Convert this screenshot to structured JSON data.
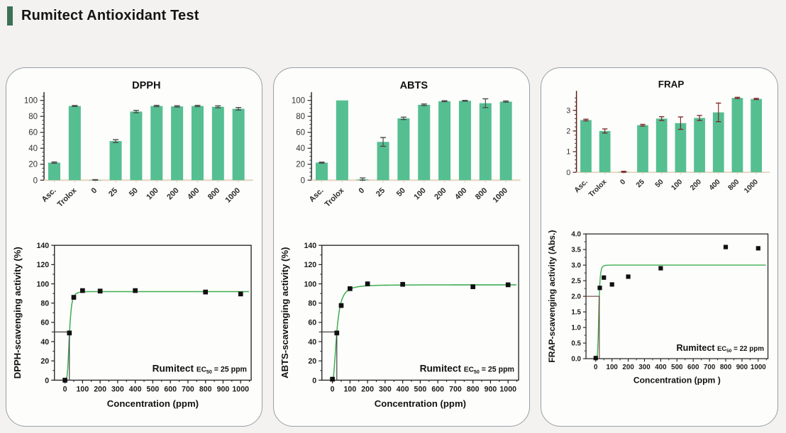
{
  "page": {
    "title": "Rumitect Antioxidant Test",
    "background_color": "#f3f2f0",
    "accent_color": "#3d7157",
    "panel_background": "#fdfdfc",
    "panel_border_color": "#989ea6"
  },
  "colors": {
    "bar_fill": "#55bf92",
    "curve_line": "#3fae51",
    "point_fill": "#101010",
    "axis_dark": "#3a3a3a",
    "axis_maroon": "#5c2018",
    "baseline_tan": "#e6d5bb",
    "error_dark": "#4a4a4a",
    "error_maroon": "#7a1f1f"
  },
  "chart_data": [
    {
      "panel": "DPPH",
      "type": "bar",
      "title": "DPPH",
      "categories": [
        "Asc.",
        "Trolox",
        "0",
        "25",
        "50",
        "100",
        "200",
        "400",
        "800",
        "1000"
      ],
      "values": [
        22,
        93,
        0.3,
        49,
        86,
        93,
        92.5,
        93,
        92,
        89.5
      ],
      "errors": [
        0.8,
        0.6,
        0.4,
        1.8,
        1.5,
        0.8,
        0.8,
        0.8,
        1.2,
        1.6
      ],
      "ylim": [
        0,
        105
      ],
      "yticks": [
        0,
        20,
        40,
        60,
        80,
        100
      ],
      "yminor": 5,
      "axis_color": "#3a3a3a",
      "error_color": "#4a4a4a"
    },
    {
      "panel": "DPPH",
      "type": "scatter",
      "x": [
        0,
        25,
        50,
        100,
        200,
        400,
        800,
        1000
      ],
      "y": [
        0,
        49,
        86,
        93,
        92.5,
        93,
        91.5,
        89.5
      ],
      "xlabel": "Concentration (ppm)",
      "ylabel": "DPPH-scavenging activity (%)",
      "xlim": [
        -60,
        1060
      ],
      "ylim": [
        0,
        140
      ],
      "xticks": [
        0,
        100,
        200,
        300,
        400,
        500,
        600,
        700,
        800,
        900,
        1000
      ],
      "yticks": [
        0,
        20,
        40,
        60,
        80,
        100,
        120,
        140
      ],
      "ydecimals": 0,
      "fit": {
        "plateau": 92,
        "ec50": 25,
        "hill": 4
      },
      "crosshair": {
        "x": 25,
        "y": 50
      },
      "crosshair_color": "#333333",
      "annotation": {
        "name": "Rumitect",
        "ec": "EC",
        "sub": "50",
        "rest": " = 25 ppm"
      }
    },
    {
      "panel": "ABTS",
      "type": "bar",
      "title": "ABTS",
      "categories": [
        "Asc.",
        "Trolox",
        "0",
        "25",
        "50",
        "100",
        "200",
        "400",
        "800",
        "1000"
      ],
      "values": [
        22,
        100,
        1,
        48,
        77.5,
        94.5,
        99,
        99.5,
        96.5,
        98.5
      ],
      "errors": [
        0.6,
        0,
        1.8,
        5.5,
        1.5,
        1,
        0.6,
        0.5,
        5.5,
        0.8
      ],
      "ylim": [
        0,
        105
      ],
      "yticks": [
        0,
        20,
        40,
        60,
        80,
        100
      ],
      "yminor": 5,
      "axis_color": "#3a3a3a",
      "error_color": "#4a4a4a"
    },
    {
      "panel": "ABTS",
      "type": "scatter",
      "x": [
        0,
        25,
        50,
        100,
        200,
        400,
        800,
        1000
      ],
      "y": [
        1,
        49,
        77.5,
        95,
        100,
        99.5,
        97,
        99
      ],
      "xlabel": "Concentration (ppm)",
      "ylabel": "ABTS-scavenging activity (%)",
      "xlim": [
        -60,
        1060
      ],
      "ylim": [
        0,
        140
      ],
      "xticks": [
        0,
        100,
        200,
        300,
        400,
        500,
        600,
        700,
        800,
        900,
        1000
      ],
      "yticks": [
        0,
        20,
        40,
        60,
        80,
        100,
        120,
        140
      ],
      "ydecimals": 0,
      "fit": {
        "plateau": 99,
        "ec50": 25,
        "hill": 2.2
      },
      "crosshair": {
        "x": 25,
        "y": 50
      },
      "crosshair_color": "#333333",
      "annotation": {
        "name": "Rumitect",
        "ec": "EC",
        "sub": "50",
        "rest": " = 25 ppm"
      }
    },
    {
      "panel": "FRAP",
      "type": "bar",
      "title": "FRAP",
      "categories": [
        "Asc.",
        "Trolox",
        "0",
        "25",
        "50",
        "100",
        "200",
        "400",
        "800",
        "1000"
      ],
      "values": [
        2.53,
        2.0,
        0.02,
        2.28,
        2.6,
        2.38,
        2.63,
        2.9,
        3.6,
        3.55
      ],
      "errors": [
        0.04,
        0.1,
        0.03,
        0.04,
        0.09,
        0.3,
        0.12,
        0.45,
        0.03,
        0.03
      ],
      "ylim": [
        0,
        3.75
      ],
      "yticks": [
        0,
        1,
        2,
        3
      ],
      "yminor": 0.2,
      "axis_color": "#5c2018",
      "error_color": "#7a1f1f"
    },
    {
      "panel": "FRAP",
      "type": "scatter",
      "x": [
        0,
        25,
        50,
        100,
        200,
        400,
        800,
        1000
      ],
      "y": [
        0.02,
        2.27,
        2.6,
        2.38,
        2.63,
        2.9,
        3.58,
        3.54
      ],
      "xlabel": "Concentration (ppm )",
      "ylabel": "FRAP-scavenging activity (Abs.)",
      "xlim": [
        -60,
        1060
      ],
      "ylim": [
        0,
        4
      ],
      "xticks": [
        0,
        100,
        200,
        300,
        400,
        500,
        600,
        700,
        800,
        900,
        1000
      ],
      "yticks": [
        0,
        0.5,
        1.0,
        1.5,
        2.0,
        2.5,
        3.0,
        3.5,
        4.0
      ],
      "ydecimals": 1,
      "fit": {
        "plateau": 3.0,
        "ec50": 19,
        "hill": 5
      },
      "crosshair": {
        "x": 22,
        "y": 2.0
      },
      "crosshair_color": "#5b2a22",
      "annotation": {
        "name": "Rumitect",
        "ec": "EC",
        "sub": "50",
        "rest": " = 22 ppm"
      }
    }
  ]
}
